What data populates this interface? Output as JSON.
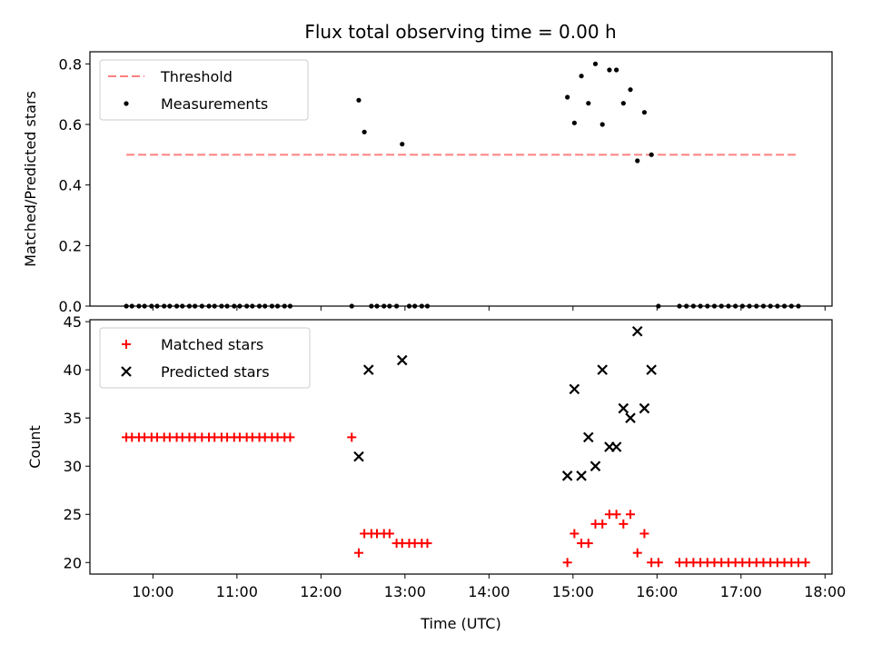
{
  "title": "Flux total observing time = 0.00 h",
  "chart_data": [
    {
      "type": "scatter",
      "panel": "top",
      "ylabel": "Matched/Predicted stars",
      "ylim": [
        0,
        0.84
      ],
      "xlim": [
        "09:15",
        "18:05"
      ],
      "yticks": [
        0,
        0.2,
        0.4,
        0.6,
        0.8
      ],
      "ytick_labels": [
        "0.0",
        "0.2",
        "0.4",
        "0.6",
        "0.8"
      ],
      "grid": false,
      "legend": "top-left",
      "threshold": {
        "name": "Threshold",
        "color": "#ff8080",
        "style": "dashed",
        "y": 0.5,
        "x_range": [
          "09:41",
          "17:41"
        ]
      },
      "series": [
        {
          "name": "Measurements",
          "color": "#000000",
          "marker": "dot",
          "points": [
            [
              "09:41",
              0
            ],
            [
              "09:45",
              0
            ],
            [
              "09:50",
              0
            ],
            [
              "09:54",
              0
            ],
            [
              "09:59",
              0
            ],
            [
              "10:03",
              0
            ],
            [
              "10:08",
              0
            ],
            [
              "10:12",
              0
            ],
            [
              "10:17",
              0
            ],
            [
              "10:21",
              0
            ],
            [
              "10:26",
              0
            ],
            [
              "10:30",
              0
            ],
            [
              "10:35",
              0
            ],
            [
              "10:40",
              0
            ],
            [
              "10:44",
              0
            ],
            [
              "10:49",
              0
            ],
            [
              "10:53",
              0
            ],
            [
              "10:58",
              0
            ],
            [
              "11:02",
              0
            ],
            [
              "11:07",
              0
            ],
            [
              "11:11",
              0
            ],
            [
              "11:16",
              0
            ],
            [
              "11:20",
              0
            ],
            [
              "11:25",
              0
            ],
            [
              "11:29",
              0
            ],
            [
              "11:34",
              0
            ],
            [
              "11:38",
              0
            ],
            [
              "12:22",
              0
            ],
            [
              "12:27",
              0.68
            ],
            [
              "12:31",
              0.575
            ],
            [
              "12:36",
              0
            ],
            [
              "12:40",
              0
            ],
            [
              "12:45",
              0
            ],
            [
              "12:49",
              0
            ],
            [
              "12:54",
              0
            ],
            [
              "12:58",
              0.535
            ],
            [
              "13:03",
              0
            ],
            [
              "13:07",
              0
            ],
            [
              "13:12",
              0
            ],
            [
              "13:16",
              0
            ],
            [
              "14:56",
              0.69
            ],
            [
              "15:01",
              0.605
            ],
            [
              "15:06",
              0.76
            ],
            [
              "15:11",
              0.67
            ],
            [
              "15:16",
              0.8
            ],
            [
              "15:21",
              0.6
            ],
            [
              "15:26",
              0.78
            ],
            [
              "15:31",
              0.78
            ],
            [
              "15:36",
              0.67
            ],
            [
              "15:41",
              0.715
            ],
            [
              "15:46",
              0.48
            ],
            [
              "15:51",
              0.64
            ],
            [
              "15:56",
              0.5
            ],
            [
              "16:01",
              0
            ],
            [
              "16:16",
              0
            ],
            [
              "16:21",
              0
            ],
            [
              "16:26",
              0
            ],
            [
              "16:31",
              0
            ],
            [
              "16:36",
              0
            ],
            [
              "16:41",
              0
            ],
            [
              "16:46",
              0
            ],
            [
              "16:51",
              0
            ],
            [
              "16:56",
              0
            ],
            [
              "17:01",
              0
            ],
            [
              "17:06",
              0
            ],
            [
              "17:11",
              0
            ],
            [
              "17:16",
              0
            ],
            [
              "17:21",
              0
            ],
            [
              "17:26",
              0
            ],
            [
              "17:31",
              0
            ],
            [
              "17:36",
              0
            ],
            [
              "17:41",
              0
            ]
          ]
        }
      ]
    },
    {
      "type": "scatter",
      "panel": "bottom",
      "xlabel": "Time (UTC)",
      "ylabel": "Count",
      "ylim": [
        18.8,
        45.2
      ],
      "xlim": [
        "09:15",
        "18:05"
      ],
      "yticks": [
        20,
        25,
        30,
        35,
        40,
        45
      ],
      "xticks": [
        "10:00",
        "11:00",
        "12:00",
        "13:00",
        "14:00",
        "15:00",
        "16:00",
        "17:00",
        "18:00"
      ],
      "grid": false,
      "legend": "top-left",
      "series": [
        {
          "name": "Matched stars",
          "color": "#ff0000",
          "marker": "plus",
          "points": [
            [
              "09:41",
              33
            ],
            [
              "09:45",
              33
            ],
            [
              "09:50",
              33
            ],
            [
              "09:54",
              33
            ],
            [
              "09:59",
              33
            ],
            [
              "10:03",
              33
            ],
            [
              "10:08",
              33
            ],
            [
              "10:12",
              33
            ],
            [
              "10:17",
              33
            ],
            [
              "10:21",
              33
            ],
            [
              "10:26",
              33
            ],
            [
              "10:30",
              33
            ],
            [
              "10:35",
              33
            ],
            [
              "10:40",
              33
            ],
            [
              "10:44",
              33
            ],
            [
              "10:49",
              33
            ],
            [
              "10:53",
              33
            ],
            [
              "10:58",
              33
            ],
            [
              "11:02",
              33
            ],
            [
              "11:07",
              33
            ],
            [
              "11:11",
              33
            ],
            [
              "11:16",
              33
            ],
            [
              "11:20",
              33
            ],
            [
              "11:25",
              33
            ],
            [
              "11:29",
              33
            ],
            [
              "11:34",
              33
            ],
            [
              "11:38",
              33
            ],
            [
              "12:22",
              33
            ],
            [
              "12:27",
              21
            ],
            [
              "12:31",
              23
            ],
            [
              "12:36",
              23
            ],
            [
              "12:40",
              23
            ],
            [
              "12:45",
              23
            ],
            [
              "12:49",
              23
            ],
            [
              "12:54",
              22
            ],
            [
              "12:58",
              22
            ],
            [
              "13:03",
              22
            ],
            [
              "13:07",
              22
            ],
            [
              "13:12",
              22
            ],
            [
              "13:16",
              22
            ],
            [
              "14:56",
              20
            ],
            [
              "15:01",
              23
            ],
            [
              "15:06",
              22
            ],
            [
              "15:11",
              22
            ],
            [
              "15:16",
              24
            ],
            [
              "15:21",
              24
            ],
            [
              "15:26",
              25
            ],
            [
              "15:31",
              25
            ],
            [
              "15:36",
              24
            ],
            [
              "15:41",
              25
            ],
            [
              "15:46",
              21
            ],
            [
              "15:51",
              23
            ],
            [
              "15:56",
              20
            ],
            [
              "16:01",
              20
            ],
            [
              "16:16",
              20
            ],
            [
              "16:21",
              20
            ],
            [
              "16:26",
              20
            ],
            [
              "16:31",
              20
            ],
            [
              "16:36",
              20
            ],
            [
              "16:41",
              20
            ],
            [
              "16:46",
              20
            ],
            [
              "16:51",
              20
            ],
            [
              "16:56",
              20
            ],
            [
              "17:01",
              20
            ],
            [
              "17:06",
              20
            ],
            [
              "17:11",
              20
            ],
            [
              "17:16",
              20
            ],
            [
              "17:21",
              20
            ],
            [
              "17:26",
              20
            ],
            [
              "17:31",
              20
            ],
            [
              "17:36",
              20
            ],
            [
              "17:41",
              20
            ],
            [
              "17:46",
              20
            ]
          ]
        },
        {
          "name": "Predicted stars",
          "color": "#000000",
          "marker": "x",
          "points": [
            [
              "12:27",
              31
            ],
            [
              "12:34",
              40
            ],
            [
              "12:58",
              41
            ],
            [
              "14:56",
              29
            ],
            [
              "15:01",
              38
            ],
            [
              "15:06",
              29
            ],
            [
              "15:11",
              33
            ],
            [
              "15:16",
              30
            ],
            [
              "15:21",
              40
            ],
            [
              "15:26",
              32
            ],
            [
              "15:31",
              32
            ],
            [
              "15:36",
              36
            ],
            [
              "15:41",
              35
            ],
            [
              "15:46",
              44
            ],
            [
              "15:51",
              36
            ],
            [
              "15:56",
              40
            ]
          ]
        }
      ]
    }
  ]
}
